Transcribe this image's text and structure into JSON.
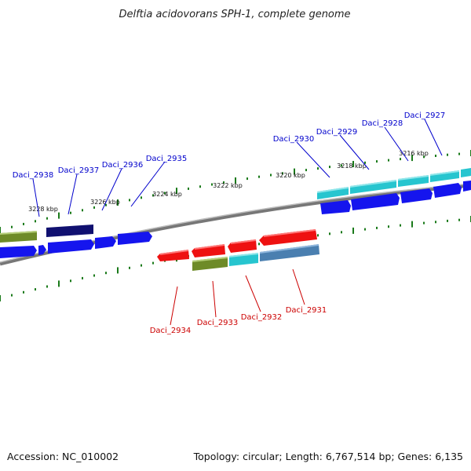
{
  "title": "Delftia acidovorans SPH-1, complete genome",
  "footer": {
    "accession": "Accession: NC_010002",
    "summary": "Topology: circular; Length: 6,767,514 bp; Genes: 6,135"
  },
  "kbp_labels": [
    "3216 kbp",
    "3218 kbp",
    "3220 kbp",
    "3222 kbp",
    "3224 kbp",
    "3226 kbp",
    "3228 kbp"
  ],
  "genes_top": [
    "Daci_2927",
    "Daci_2928",
    "Daci_2929",
    "Daci_2930",
    "Daci_2935",
    "Daci_2936",
    "Daci_2937",
    "Daci_2938"
  ],
  "genes_bottom": [
    "Daci_2931",
    "Daci_2932",
    "Daci_2933",
    "Daci_2934"
  ],
  "colors": {
    "label_top": "#0000cc",
    "label_bottom": "#cc0000",
    "backbone": "#888888",
    "ticks": "#1a7a1a",
    "blue": "#1515ee",
    "navy": "#101070",
    "cyan": "#27c5cf",
    "olive": "#6e8b28",
    "red": "#ee1111",
    "steel": "#4a7fb0"
  }
}
